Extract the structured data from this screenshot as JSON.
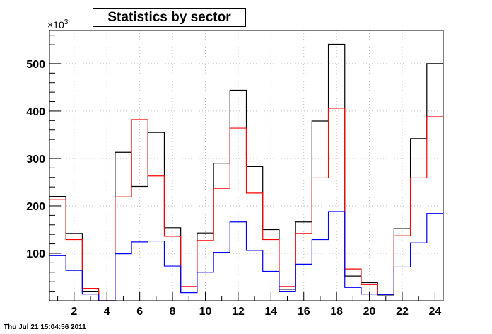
{
  "chart_data": {
    "type": "histogram",
    "title": "Statistics by sector",
    "xlabel": "",
    "ylabel": "",
    "y_multiplier_label": "×10",
    "y_multiplier_exponent": "3",
    "xlim": [
      0.5,
      24.5
    ],
    "ylim": [
      0,
      570
    ],
    "x_ticks": [
      2,
      4,
      6,
      8,
      10,
      12,
      14,
      16,
      18,
      20,
      22,
      24
    ],
    "y_ticks": [
      100,
      200,
      300,
      400,
      500
    ],
    "grid": true,
    "categories": [
      1,
      2,
      3,
      4,
      5,
      6,
      7,
      8,
      9,
      10,
      11,
      12,
      13,
      14,
      15,
      16,
      17,
      18,
      19,
      20,
      21,
      22,
      23,
      24
    ],
    "series": [
      {
        "color": "#000000",
        "values": [
          220,
          142,
          20,
          0,
          313,
          241,
          355,
          154,
          18,
          143,
          290,
          444,
          283,
          150,
          24,
          166,
          379,
          541,
          52,
          38,
          12,
          152,
          342,
          500
        ]
      },
      {
        "color": "#ff0000",
        "values": [
          213,
          129,
          26,
          0,
          219,
          382,
          263,
          136,
          30,
          127,
          237,
          364,
          227,
          129,
          30,
          142,
          259,
          406,
          67,
          34,
          14,
          137,
          259,
          388
        ]
      },
      {
        "color": "#0000ff",
        "values": [
          95,
          64,
          14,
          0,
          99,
          124,
          126,
          73,
          17,
          60,
          102,
          166,
          106,
          62,
          20,
          77,
          129,
          188,
          28,
          14,
          13,
          71,
          122,
          184
        ]
      }
    ]
  },
  "timestamp": "Thu Jul 21 15:04:56 2011"
}
